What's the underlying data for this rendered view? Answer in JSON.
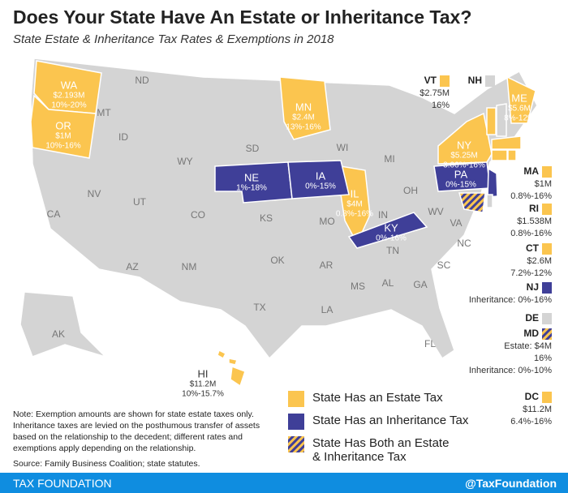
{
  "header": {
    "title": "Does Your State Have An Estate or Inheritance Tax?",
    "subtitle": "State Estate & Inheritance Tax Rates & Exemptions in 2018"
  },
  "map_labels": [
    {
      "abbr": "WA",
      "exemption": "$2.193M",
      "rate": "10%-20%"
    },
    {
      "abbr": "OR",
      "exemption": "$1M",
      "rate": "10%-16%"
    },
    {
      "abbr": "MN",
      "exemption": "$2.4M",
      "rate": "13%-16%"
    },
    {
      "abbr": "NE",
      "rate": "1%-18%"
    },
    {
      "abbr": "IA",
      "rate": "0%-15%"
    },
    {
      "abbr": "IL",
      "exemption": "$4M",
      "rate": "0.8%-16%"
    },
    {
      "abbr": "KY",
      "rate": "0%-16%"
    },
    {
      "abbr": "PA",
      "rate": "0%-15%"
    },
    {
      "abbr": "NY",
      "exemption": "$5.25M",
      "rate": "3.06%-16%"
    },
    {
      "abbr": "ME",
      "exemption": "$5.6M",
      "rate": "8%-12%"
    },
    {
      "abbr": "HI",
      "exemption": "$11.2M",
      "rate": "10%-15.7%"
    }
  ],
  "other_states": [
    "MT",
    "ND",
    "ID",
    "WY",
    "SD",
    "WI",
    "MI",
    "NV",
    "UT",
    "CO",
    "KS",
    "MO",
    "IN",
    "OH",
    "WV",
    "VA",
    "CA",
    "AZ",
    "NM",
    "OK",
    "AR",
    "TN",
    "NC",
    "SC",
    "MS",
    "AL",
    "GA",
    "TX",
    "LA",
    "FL",
    "AK"
  ],
  "side_labels": [
    {
      "abbr": "VT",
      "lines": [
        "$2.75M",
        "16%"
      ]
    },
    {
      "abbr": "NH",
      "lines": []
    },
    {
      "abbr": "MA",
      "lines": [
        "$1M",
        "0.8%-16%"
      ]
    },
    {
      "abbr": "RI",
      "lines": [
        "$1.538M",
        "0.8%-16%"
      ]
    },
    {
      "abbr": "CT",
      "lines": [
        "$2.6M",
        "7.2%-12%"
      ]
    },
    {
      "abbr": "NJ",
      "lines": [
        "Inheritance: 0%-16%"
      ]
    },
    {
      "abbr": "DE",
      "lines": []
    },
    {
      "abbr": "MD",
      "lines": [
        "Estate: $4M",
        "16%",
        "Inheritance: 0%-10%"
      ]
    },
    {
      "abbr": "DC",
      "lines": [
        "$11.2M",
        "6.4%-16%"
      ]
    }
  ],
  "legend": [
    "State Has an Estate Tax",
    "State Has an Inheritance Tax",
    "State Has Both an Estate & Inheritance Tax"
  ],
  "note": "Note: Exemption amounts are shown for state estate taxes only. Inheritance taxes are levied on the posthumous transfer of assets based on the relationship to the decedent; different rates and exemptions apply depending on the relationship.",
  "source": "Source: Family Business Coalition; state statutes.",
  "footer": {
    "brand": "TAX FOUNDATION",
    "handle": "@TaxFoundation"
  }
}
